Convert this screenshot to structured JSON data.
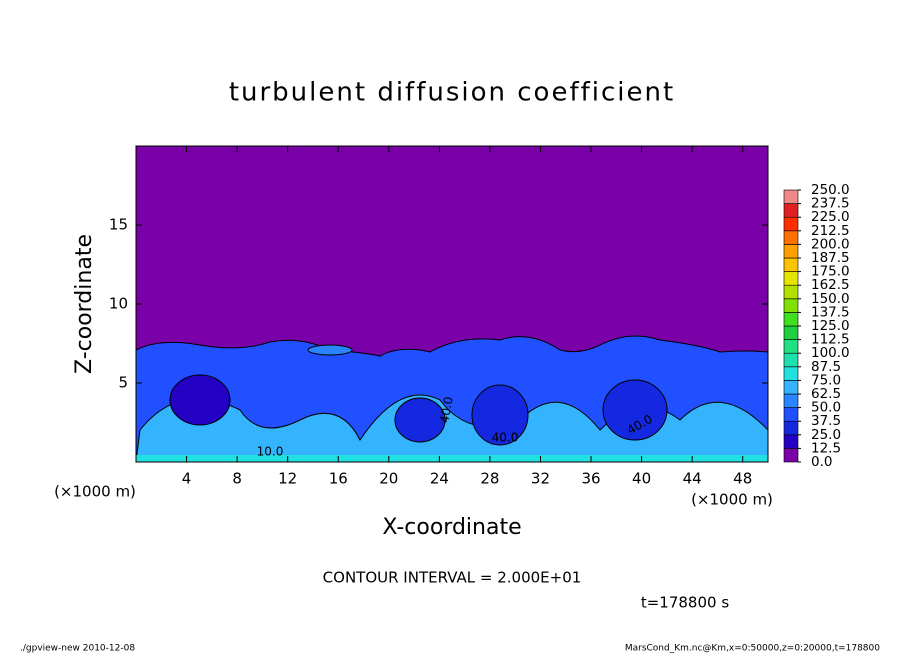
{
  "chart_data": {
    "type": "contour",
    "title": "turbulent diffusion coefficient",
    "xlabel": "X-coordinate",
    "ylabel": "Z-coordinate",
    "xunit": "(×1000 m)",
    "yunit": "(×1000 m)",
    "xlim": [
      0,
      50
    ],
    "ylim": [
      0,
      20
    ],
    "xticks": [
      4,
      8,
      12,
      16,
      20,
      24,
      28,
      32,
      36,
      40,
      44,
      48
    ],
    "yticks": [
      5,
      10,
      15
    ],
    "contour_labels": [
      "10.0",
      "40.0",
      "40.0",
      "40.0"
    ],
    "colorbar": {
      "levels": [
        {
          "value": 0,
          "label": "0.0"
        },
        {
          "value": 12.5,
          "label": "12.5"
        },
        {
          "value": 25,
          "label": "25.0"
        },
        {
          "value": 37.5,
          "label": "37.5"
        },
        {
          "value": 50,
          "label": "50.0"
        },
        {
          "value": 62.5,
          "label": "62.5"
        },
        {
          "value": 75,
          "label": "75.0"
        },
        {
          "value": 87.5,
          "label": "87.5"
        },
        {
          "value": 100,
          "label": "100.0"
        },
        {
          "value": 112.5,
          "label": "112.5"
        },
        {
          "value": 125,
          "label": "125.0"
        },
        {
          "value": 137.5,
          "label": "137.5"
        },
        {
          "value": 150,
          "label": "150.0"
        },
        {
          "value": 162.5,
          "label": "162.5"
        },
        {
          "value": 175,
          "label": "175.0"
        },
        {
          "value": 187.5,
          "label": "187.5"
        },
        {
          "value": 200,
          "label": "200.0"
        },
        {
          "value": 212.5,
          "label": "212.5"
        },
        {
          "value": 225,
          "label": "225.0"
        },
        {
          "value": 237.5,
          "label": "237.5"
        },
        {
          "value": 250,
          "label": "250.0"
        }
      ],
      "colors": [
        "#7a00a8",
        "#2400c4",
        "#1428e0",
        "#2050ff",
        "#2884ff",
        "#34b4ff",
        "#20e0e0",
        "#20e0b0",
        "#20e080",
        "#20d040",
        "#40e020",
        "#80e000",
        "#b4e000",
        "#e4e400",
        "#ffc400",
        "#ffa000",
        "#ff7000",
        "#ff3000",
        "#e02020",
        "#f08888"
      ]
    },
    "contour_interval": "CONTOUR INTERVAL = 2.000E+01",
    "time_label": "t=178800 s",
    "footer_left": "./gpview-new  2010-12-08",
    "footer_right": "MarsCond_Km.nc@Km,x=0:50000,z=0:20000,t=178800"
  }
}
